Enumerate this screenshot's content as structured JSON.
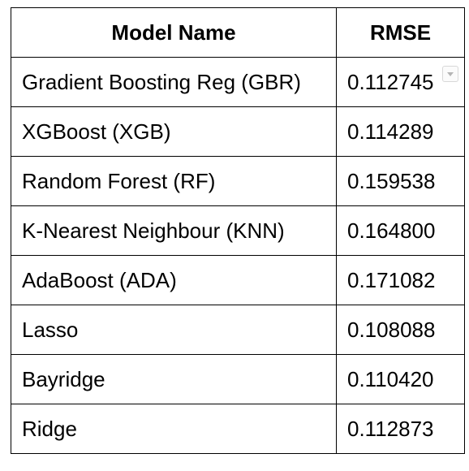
{
  "table": {
    "headers": [
      "Model Name",
      "RMSE"
    ],
    "rows": [
      {
        "model": "Gradient Boosting Reg (GBR)",
        "rmse": "0.112745"
      },
      {
        "model": "XGBoost (XGB)",
        "rmse": "0.114289"
      },
      {
        "model": "Random Forest (RF)",
        "rmse": "0.159538"
      },
      {
        "model": "K-Nearest Neighbour (KNN)",
        "rmse": "0.164800"
      },
      {
        "model": "AdaBoost (ADA)",
        "rmse": "0.171082"
      },
      {
        "model": "Lasso",
        "rmse": "0.108088"
      },
      {
        "model": "Bayridge",
        "rmse": "0.110420"
      },
      {
        "model": "Ridge",
        "rmse": "0.112873"
      }
    ],
    "icons": {
      "cell_dropdown": "chevron-down-icon"
    }
  }
}
